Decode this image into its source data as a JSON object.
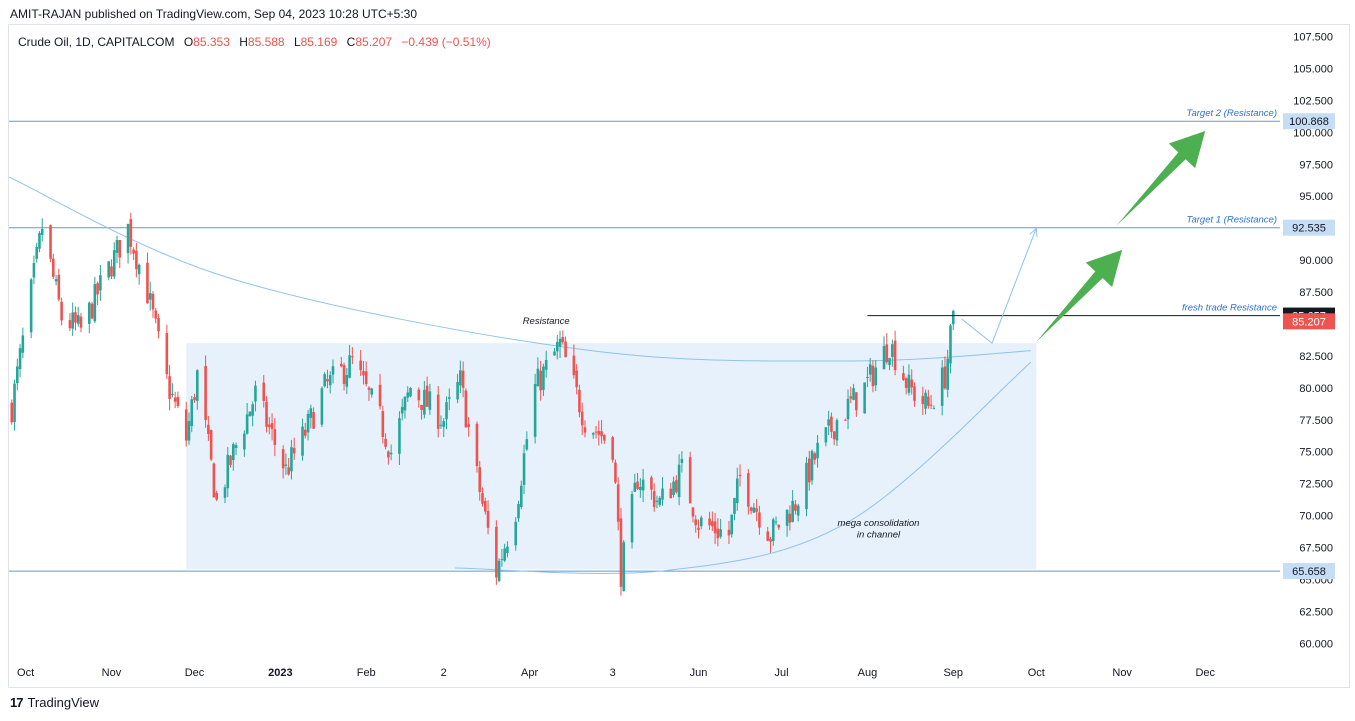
{
  "publisher_line": "AMIT-RAJAN published on TradingView.com, Sep 04, 2023 10:28 UTC+5:30",
  "legend": {
    "symbol": "Crude Oil, 1D, CAPITALCOM",
    "open_label": "O",
    "open": "85.353",
    "high_label": "H",
    "high": "85.588",
    "low_label": "L",
    "low": "85.169",
    "close_label": "C",
    "close": "85.207",
    "change": "−0.439 (−0.51%)"
  },
  "footer": {
    "brand": "TradingView",
    "logo": "tradingview-logo-icon"
  },
  "colors": {
    "up": "#26a69a",
    "down": "#ef5350",
    "hline": "#5b9bd5",
    "box_fill": "#e3eefb",
    "arrow": "#4caf50"
  },
  "chart_data": {
    "type": "candlestick",
    "title": "",
    "ylim": [
      58.7,
      108.4
    ],
    "y_ticks": [
      "107.500",
      "105.000",
      "102.500",
      "100.000",
      "97.500",
      "95.000",
      "92.500",
      "90.000",
      "87.500",
      "85.000",
      "82.500",
      "80.000",
      "77.500",
      "75.000",
      "72.500",
      "70.000",
      "67.500",
      "65.000",
      "62.500",
      "60.000"
    ],
    "x_ticks": [
      "Oct",
      "Nov",
      "Dec",
      "2023",
      "Feb",
      "2",
      "Apr",
      "3",
      "Jun",
      "Jul",
      "Aug",
      "Sep",
      "Oct",
      "Nov",
      "Dec"
    ],
    "price_path": [
      {
        "date": "2022-09-26",
        "price": 78.5
      },
      {
        "date": "2022-10-07",
        "price": 92.6
      },
      {
        "date": "2022-10-14",
        "price": 85.5
      },
      {
        "date": "2022-10-21",
        "price": 84.5
      },
      {
        "date": "2022-10-28",
        "price": 87.9
      },
      {
        "date": "2022-11-07",
        "price": 92.5
      },
      {
        "date": "2022-11-14",
        "price": 87.5
      },
      {
        "date": "2022-11-21",
        "price": 80.5
      },
      {
        "date": "2022-11-28",
        "price": 76.0
      },
      {
        "date": "2022-12-02",
        "price": 81.0
      },
      {
        "date": "2022-12-09",
        "price": 71.0
      },
      {
        "date": "2022-12-16",
        "price": 75.5
      },
      {
        "date": "2022-12-23",
        "price": 79.5
      },
      {
        "date": "2023-01-03",
        "price": 73.5
      },
      {
        "date": "2023-01-10",
        "price": 76.5
      },
      {
        "date": "2023-01-17",
        "price": 80.0
      },
      {
        "date": "2023-01-27",
        "price": 82.0
      },
      {
        "date": "2023-02-06",
        "price": 77.5
      },
      {
        "date": "2023-02-10",
        "price": 75.0
      },
      {
        "date": "2023-02-17",
        "price": 80.0
      },
      {
        "date": "2023-03-01",
        "price": 77.5
      },
      {
        "date": "2023-03-07",
        "price": 80.5
      },
      {
        "date": "2023-03-13",
        "price": 73.0
      },
      {
        "date": "2023-03-20",
        "price": 65.6
      },
      {
        "date": "2023-03-27",
        "price": 70.5
      },
      {
        "date": "2023-03-31",
        "price": 76.0
      },
      {
        "date": "2023-04-03",
        "price": 80.0
      },
      {
        "date": "2023-04-12",
        "price": 83.4
      },
      {
        "date": "2023-04-21",
        "price": 77.5
      },
      {
        "date": "2023-05-01",
        "price": 75.5
      },
      {
        "date": "2023-05-04",
        "price": 65.6
      },
      {
        "date": "2023-05-10",
        "price": 73.0
      },
      {
        "date": "2023-05-18",
        "price": 71.0
      },
      {
        "date": "2023-05-26",
        "price": 73.5
      },
      {
        "date": "2023-06-01",
        "price": 69.5
      },
      {
        "date": "2023-06-12",
        "price": 68.5
      },
      {
        "date": "2023-06-16",
        "price": 73.0
      },
      {
        "date": "2023-06-27",
        "price": 68.5
      },
      {
        "date": "2023-07-06",
        "price": 71.0
      },
      {
        "date": "2023-07-14",
        "price": 75.0
      },
      {
        "date": "2023-07-21",
        "price": 77.5
      },
      {
        "date": "2023-07-31",
        "price": 80.0
      },
      {
        "date": "2023-08-09",
        "price": 83.5
      },
      {
        "date": "2023-08-16",
        "price": 80.0
      },
      {
        "date": "2023-08-23",
        "price": 78.5
      },
      {
        "date": "2023-08-29",
        "price": 81.0
      },
      {
        "date": "2023-09-01",
        "price": 85.2
      }
    ],
    "horizontal_levels": [
      {
        "price": 100.868,
        "label": "Target 2 (Resistance)",
        "tag": "100.868"
      },
      {
        "price": 92.535,
        "label": "Target 1 (Resistance)",
        "tag": "92.535"
      },
      {
        "price": 65.658,
        "label": "",
        "tag": "65.658"
      }
    ],
    "fresh_trade_level": {
      "price": 85.657,
      "label": "fresh trade Resistance",
      "tag": "85.657",
      "start": "2023-08-01",
      "end": "2023-12-31"
    },
    "last_price": {
      "price": 85.207,
      "tag": "85.207"
    },
    "consolidation_box": {
      "start": "2022-11-28",
      "end": "2023-10-01",
      "top": 83.5,
      "bottom": 65.8
    },
    "annotations": [
      {
        "text": "Resistance",
        "date": "2023-04-07",
        "price": 85.0
      },
      {
        "text": "mega consolidation",
        "date": "2023-08-05",
        "price": 69.2
      },
      {
        "text": "in channel",
        "date": "2023-08-05",
        "price": 68.3
      }
    ],
    "resistance_curve": [
      {
        "date": "2022-09-25",
        "price": 96.5
      },
      {
        "date": "2022-12-15",
        "price": 88.5
      },
      {
        "date": "2023-04-20",
        "price": 83.0
      },
      {
        "date": "2023-07-25",
        "price": 82.1
      },
      {
        "date": "2023-09-29",
        "price": 82.9
      }
    ],
    "support_curve": [
      {
        "date": "2023-03-05",
        "price": 65.9
      },
      {
        "date": "2023-05-20",
        "price": 65.7
      },
      {
        "date": "2023-07-25",
        "price": 69.5
      },
      {
        "date": "2023-09-29",
        "price": 82.0
      }
    ],
    "projection_path": [
      {
        "date": "2023-09-04",
        "price": 85.4
      },
      {
        "date": "2023-09-15",
        "price": 83.5
      },
      {
        "date": "2023-10-01",
        "price": 92.5
      }
    ],
    "green_arrows": [
      {
        "from": {
          "date": "2023-10-01",
          "price": 83.6
        },
        "to": {
          "date": "2023-11-01",
          "price": 90.8
        }
      },
      {
        "from": {
          "date": "2023-10-30",
          "price": 92.7
        },
        "to": {
          "date": "2023-12-01",
          "price": 100.1
        }
      }
    ]
  }
}
